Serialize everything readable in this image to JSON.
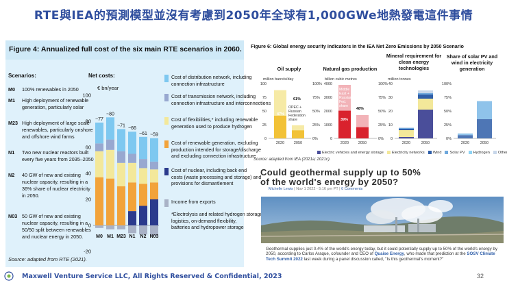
{
  "slide": {
    "title": "RTE與IEA的預測模型並沒有考慮到2050年全球有1,000GWe地熱發電這件事情",
    "footer": "Maxwell Venture Service LLC, All Rights Reserved & Confidential, 2023",
    "page_number": "32"
  },
  "left_figure": {
    "title": "Figure 4: Annualized full cost of the six main RTE scenarios in 2060.",
    "scenarios_heading": "Scenarios:",
    "net_costs_heading": "Net costs:",
    "unit_label": "€ bn/year",
    "source": "Source: adapted from RTE (2021).",
    "scenarios": [
      {
        "code": "M0",
        "lines": [
          "100% renewables in 2050"
        ]
      },
      {
        "code": "M1",
        "lines": [
          "High deployment of renewable",
          "generation, particularly solar"
        ]
      },
      {
        "code": "M23",
        "lines": [
          "High deployment of large scale",
          "renewables, particularly onshore",
          "and offshore wind farms"
        ]
      },
      {
        "code": "N1",
        "lines": [
          "Two new nuclear reactors built",
          "every five years from 2035–2050"
        ]
      },
      {
        "code": "N2",
        "lines": [
          "40 GW of new and existing",
          "nuclear capacity, resulting in a",
          "36% share of nuclear electricity",
          "in 2050."
        ]
      },
      {
        "code": "N03",
        "lines": [
          "50 GW of new and existing",
          "nuclear capacity, resulting in a",
          "50/50 split between renewables",
          "and nuclear energy in 2050."
        ]
      }
    ],
    "legend": [
      {
        "color": "#7ec8f0",
        "lines": [
          "Cost of distribution network, including",
          "connection infrastructure"
        ]
      },
      {
        "color": "#98a8d0",
        "lines": [
          "Cost of transmission network, including",
          "connection infrastructure and interconnections"
        ]
      },
      {
        "color": "#f3e89a",
        "lines": [
          "Cost of flexibilities,* including renewable",
          "generation used to produce hydrogen"
        ]
      },
      {
        "color": "#f2a33a",
        "lines": [
          "Cost of renewable generation, excluding",
          "production intended for storage/discharge",
          "and excluding connection infrastructure"
        ]
      },
      {
        "color": "#2a3a8c",
        "lines": [
          "Cost of nuclear, including back end",
          "costs (waste processing and storage) and",
          "provisions for dismantlement"
        ]
      },
      {
        "color": "#a9b2c6",
        "lines": [
          "Income from exports"
        ]
      },
      {
        "color": "",
        "lines": [
          "*Electrolysis and related hydrogen storage",
          "logistics, on-demand flexibility,",
          "batteries and hydropower storage"
        ]
      }
    ]
  },
  "right_figure": {
    "title": "Figure 6: Global energy security indicators in the IEA Net Zero Emissions by 2050 Scenario",
    "source": "Source: adapted from IEA (2021a; 2021c).",
    "panels": [
      "Oil supply",
      "Natural gas production",
      "Mineral requirement for clean energy technologies",
      "Share of solar PV and wind in electricity generation"
    ],
    "units": [
      "million barrels/day",
      "billion cubic metres",
      "million tonnes"
    ],
    "annotations": {
      "oil_opec_2050": "61%",
      "oil_opec_2020": "47%",
      "oil_opec_label": "OPEC + Russian Federation share",
      "gas_share_2050": "48%",
      "gas_share_2020": "39%",
      "gas_share_label": "Middle East + Russian Fed. share"
    },
    "legend": [
      {
        "label": "Electric vehicles and energy storage",
        "color": "#4a4e9a"
      },
      {
        "label": "Electricity networks",
        "color": "#f3e89a"
      },
      {
        "label": "Wind",
        "color": "#2f5ea8"
      },
      {
        "label": "Solar PV",
        "color": "#6fa8dc"
      },
      {
        "label": "Hydrogen",
        "color": "#8fd3f4"
      },
      {
        "label": "Other",
        "color": "#c8d7ea"
      }
    ]
  },
  "article": {
    "title_line1": "Could geothermal supply up to 50%",
    "title_line2": "of the world's energy by 2050?",
    "author": "Michelle Lewis",
    "date": "Nov 1 2022 - 5:16 pm PT",
    "comments": "0 Comments",
    "body_1": "Geothermal supplies just 0.4% of the world's energy today, but it could potentially supply up to 50% of the world's energy by 2050, according to Carlos Araque, cofounder and CEO of ",
    "body_link1": "Quaise Energy",
    "body_2": ", who made that prediction at the ",
    "body_link2": "SOSV Climate Tech Summit 2022",
    "body_3": " last week during a panel discussion called, \"Is this geothermal's moment?\""
  },
  "chart_data": [
    {
      "type": "bar",
      "title": "Annualized full cost of the six main RTE scenarios in 2060",
      "ylabel": "€ bn/year",
      "ylim": [
        -20,
        100
      ],
      "yticks": [
        -20,
        0,
        20,
        40,
        60,
        80,
        100
      ],
      "categories": [
        "M0",
        "M1",
        "M23",
        "N1",
        "N2",
        "N03"
      ],
      "totals": [
        "~77",
        "~80",
        "~71",
        "~66",
        "~61",
        "~59"
      ],
      "series": [
        {
          "name": "Income from exports",
          "values": [
            -2,
            -3,
            -3,
            -6,
            -7,
            -8
          ]
        },
        {
          "name": "Cost of nuclear",
          "values": [
            0,
            0,
            0,
            11,
            15,
            20
          ]
        },
        {
          "name": "Cost of renewable generation",
          "values": [
            37,
            36,
            30,
            22,
            17,
            13
          ]
        },
        {
          "name": "Cost of flexibilities",
          "values": [
            20,
            22,
            18,
            15,
            12,
            10
          ]
        },
        {
          "name": "Cost of transmission network",
          "values": [
            6,
            8,
            9,
            7,
            7,
            6
          ]
        },
        {
          "name": "Cost of distribution network",
          "values": [
            16,
            17,
            17,
            17,
            17,
            18
          ]
        }
      ]
    },
    {
      "type": "bar",
      "title": "Oil supply",
      "ylabel": "million barrels/day",
      "ylim": [
        0,
        100
      ],
      "categories": [
        "2020",
        "2050"
      ],
      "values": [
        88,
        24
      ]
    },
    {
      "type": "bar",
      "title": "Natural gas production",
      "ylabel": "billion cubic metres",
      "ylim": [
        0,
        4000
      ],
      "categories": [
        "2020",
        "2050"
      ],
      "values": [
        3900,
        1700
      ]
    },
    {
      "type": "bar",
      "title": "Mineral requirement for clean energy technologies",
      "ylabel": "million tonnes",
      "ylim": [
        0,
        40
      ],
      "categories": [
        "2020",
        "2050"
      ],
      "series": [
        {
          "name": "Electric vehicles and energy storage",
          "values": [
            1,
            21
          ]
        },
        {
          "name": "Electricity networks",
          "values": [
            5,
            8
          ]
        },
        {
          "name": "Wind",
          "values": [
            1,
            3
          ]
        },
        {
          "name": "Solar PV",
          "values": [
            0.5,
            1
          ]
        },
        {
          "name": "Other",
          "values": [
            0.5,
            2
          ]
        }
      ]
    },
    {
      "type": "bar",
      "title": "Share of solar PV and wind in electricity generation",
      "ylabel": "%",
      "ylim": [
        0,
        100
      ],
      "categories": [
        "2020",
        "2050"
      ],
      "series": [
        {
          "name": "Wind",
          "values": [
            6,
            35
          ]
        },
        {
          "name": "Solar PV",
          "values": [
            3,
            33
          ]
        }
      ]
    }
  ]
}
